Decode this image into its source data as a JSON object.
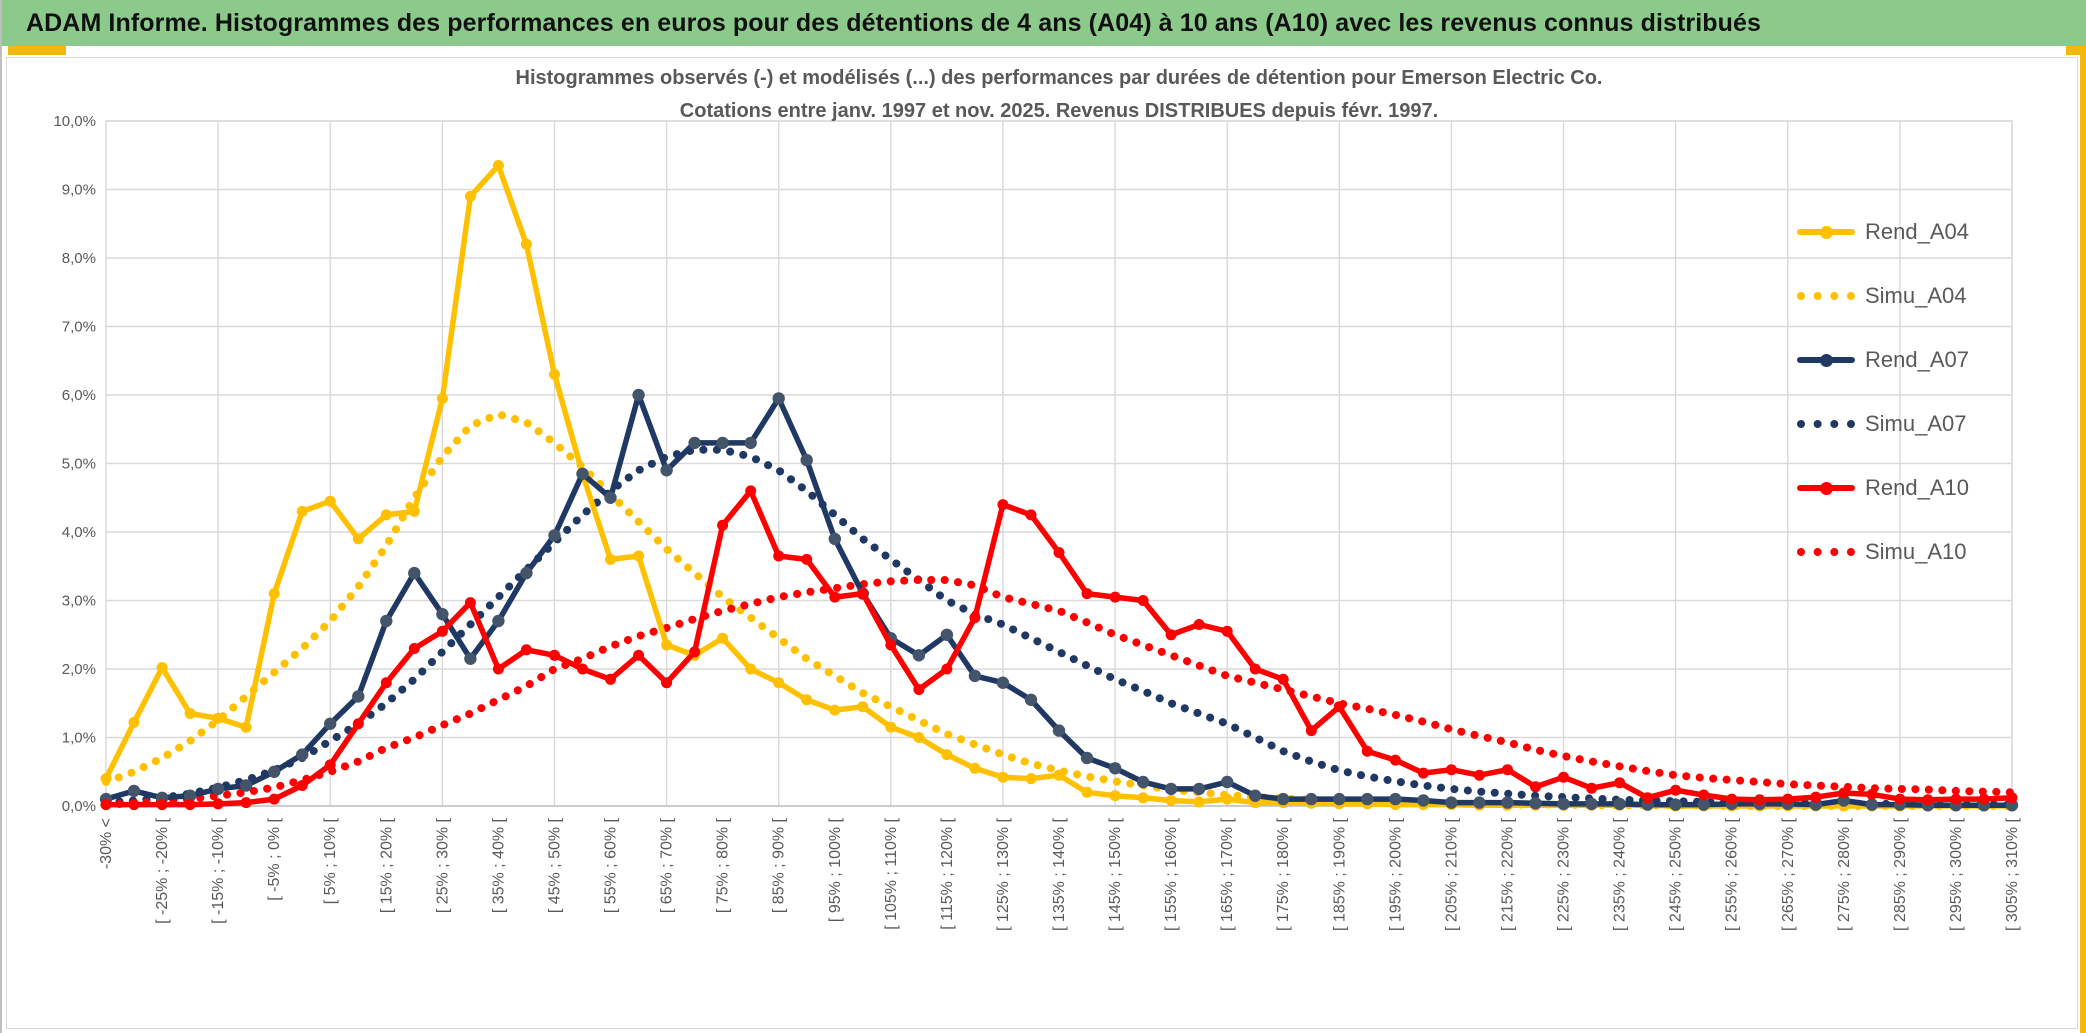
{
  "header": {
    "title": "ADAM Informe. Histogrammes des performances en euros pour des détentions de 4 ans (A04) à 10 ans (A10) avec les revenus connus distribués"
  },
  "page_colors": {
    "header_green": "#8cca8c",
    "accent_gold": "#f2b80c",
    "text_gray": "#595959",
    "gridline_gray": "#d9d9d9",
    "axis_gray": "#bfbfbf"
  },
  "chart_data": {
    "type": "line",
    "title_line1": "Histogrammes observés (-) et modélisés (...) des performances par durées de détention pour Emerson Electric Co.",
    "title_line2": "Cotations entre janv. 1997 et nov. 2025. Revenus DISTRIBUES depuis févr. 1997.",
    "ylim": [
      0,
      10
    ],
    "grid": true,
    "legend_position": "right",
    "n_bins": 69,
    "x_tick_every": 2,
    "y_tick_labels": [
      "10,0%",
      "9,0%",
      "8,0%",
      "7,0%",
      "6,0%",
      "5,0%",
      "4,0%",
      "3,0%",
      "2,0%",
      "1,0%",
      "0,0%"
    ],
    "x_tick_labels": [
      "-30% <",
      "[ -25% ; -20% [",
      "[ -15% ; -10% [",
      "[ -5% ; 0% [",
      "[ 5% ; 10% [",
      "[ 15% ; 20% [",
      "[ 25% ; 30% [",
      "[ 35% ; 40% [",
      "[ 45% ; 50% [",
      "[ 55% ; 60% [",
      "[ 65% ; 70% [",
      "[ 75% ; 80% [",
      "[ 85% ; 90% [",
      "[ 95% ; 100% [",
      "[ 105% ; 110% [",
      "[ 115% ; 120% [",
      "[ 125% ; 130% [",
      "[ 135% ; 140% [",
      "[ 145% ; 150% [",
      "[ 155% ; 160% [",
      "[ 165% ; 170% [",
      "[ 175% ; 180% [",
      "[ 185% ; 190% [",
      "[ 195% ; 200% [",
      "[ 205% ; 210% [",
      "[ 215% ; 220% [",
      "[ 225% ; 230% [",
      "[ 235% ; 240% [",
      "[ 245% ; 250% [",
      "[ 255% ; 260% [",
      "[ 265% ; 270% [",
      "[ 275% ; 280% [",
      "[ 285% ; 290% [",
      "[ 295% ; 300% [",
      "[ 305% ; 310% ["
    ],
    "series": [
      {
        "name": "Simu_A04",
        "color": "#ffc000",
        "style": "dotted",
        "markers": false,
        "values": [
          0.35,
          0.5,
          0.7,
          0.95,
          1.25,
          1.6,
          1.95,
          2.3,
          2.7,
          3.2,
          3.8,
          4.5,
          5.1,
          5.55,
          5.72,
          5.6,
          5.3,
          4.95,
          4.55,
          4.15,
          3.75,
          3.4,
          3.05,
          2.75,
          2.45,
          2.15,
          1.9,
          1.65,
          1.45,
          1.25,
          1.05,
          0.9,
          0.75,
          0.62,
          0.52,
          0.43,
          0.36,
          0.3,
          0.24,
          0.2,
          0.16,
          0.13,
          0.11,
          0.09,
          0.07,
          0.06,
          0.05,
          0.04,
          0.03,
          0.03,
          0.02,
          0.02,
          0.02,
          0.01,
          0.01,
          0.01,
          0.01,
          0.01,
          0,
          0,
          0,
          0,
          0,
          0,
          0,
          0,
          0,
          0,
          0
        ]
      },
      {
        "name": "Simu_A07",
        "color": "#1f3864",
        "style": "dotted",
        "markers": false,
        "values": [
          0.05,
          0.08,
          0.12,
          0.18,
          0.27,
          0.38,
          0.52,
          0.7,
          0.95,
          1.2,
          1.5,
          1.85,
          2.25,
          2.65,
          3.05,
          3.45,
          3.85,
          4.25,
          4.6,
          4.9,
          5.1,
          5.2,
          5.2,
          5.1,
          4.9,
          4.6,
          4.25,
          3.9,
          3.6,
          3.3,
          3.0,
          2.8,
          2.65,
          2.45,
          2.25,
          2.05,
          1.85,
          1.68,
          1.5,
          1.35,
          1.2,
          1.0,
          0.8,
          0.65,
          0.52,
          0.43,
          0.36,
          0.3,
          0.25,
          0.21,
          0.18,
          0.15,
          0.13,
          0.11,
          0.09,
          0.08,
          0.07,
          0.06,
          0.05,
          0.05,
          0.04,
          0.04,
          0.03,
          0.03,
          0.03,
          0.02,
          0.02,
          0.02,
          0.02
        ]
      },
      {
        "name": "Simu_A10",
        "color": "#ff0000",
        "style": "dotted",
        "markers": false,
        "values": [
          0.02,
          0.04,
          0.07,
          0.1,
          0.15,
          0.2,
          0.27,
          0.38,
          0.5,
          0.65,
          0.85,
          1.0,
          1.18,
          1.35,
          1.55,
          1.75,
          2.0,
          2.15,
          2.33,
          2.48,
          2.6,
          2.73,
          2.85,
          2.95,
          3.05,
          3.12,
          3.18,
          3.24,
          3.28,
          3.3,
          3.3,
          3.22,
          3.05,
          2.95,
          2.85,
          2.68,
          2.5,
          2.35,
          2.2,
          2.05,
          1.9,
          1.8,
          1.7,
          1.6,
          1.5,
          1.42,
          1.33,
          1.23,
          1.12,
          1.02,
          0.93,
          0.82,
          0.73,
          0.65,
          0.58,
          0.51,
          0.45,
          0.41,
          0.38,
          0.35,
          0.32,
          0.3,
          0.28,
          0.26,
          0.25,
          0.24,
          0.22,
          0.21,
          0.2
        ]
      },
      {
        "name": "Rend_A04",
        "color": "#ffc000",
        "style": "solid",
        "markers": true,
        "marker_color": "#ffc000",
        "values": [
          0.4,
          1.22,
          2.02,
          1.35,
          1.28,
          1.15,
          3.1,
          4.3,
          4.45,
          3.9,
          4.25,
          4.3,
          5.95,
          8.9,
          9.35,
          8.2,
          6.3,
          4.85,
          3.6,
          3.65,
          2.35,
          2.2,
          2.45,
          2.0,
          1.8,
          1.55,
          1.4,
          1.45,
          1.15,
          1.0,
          0.75,
          0.55,
          0.42,
          0.4,
          0.45,
          0.2,
          0.15,
          0.12,
          0.08,
          0.06,
          0.1,
          0.05,
          0.05,
          0.04,
          0.03,
          0.03,
          0.02,
          0.02,
          0.02,
          0.01,
          0.01,
          0.01,
          0.01,
          0.01,
          0.01,
          0.01,
          0,
          0,
          0,
          0,
          0,
          0,
          0,
          0,
          0,
          0,
          0,
          0,
          0
        ]
      },
      {
        "name": "Rend_A07",
        "color": "#1f3864",
        "style": "solid",
        "markers": true,
        "marker_color": "#44546a",
        "values": [
          0.1,
          0.22,
          0.12,
          0.15,
          0.25,
          0.3,
          0.5,
          0.75,
          1.2,
          1.6,
          2.7,
          3.4,
          2.8,
          2.15,
          2.7,
          3.4,
          3.95,
          4.85,
          4.5,
          6.0,
          4.9,
          5.3,
          5.3,
          5.3,
          5.95,
          5.05,
          3.9,
          3.1,
          2.45,
          2.2,
          2.5,
          1.9,
          1.8,
          1.55,
          1.1,
          0.7,
          0.55,
          0.35,
          0.25,
          0.25,
          0.35,
          0.15,
          0.1,
          0.1,
          0.1,
          0.1,
          0.1,
          0.08,
          0.05,
          0.05,
          0.05,
          0.04,
          0.03,
          0.03,
          0.03,
          0.02,
          0.02,
          0.02,
          0.03,
          0.03,
          0.03,
          0.02,
          0.08,
          0.02,
          0.02,
          0.01,
          0.01,
          0.01,
          0.01
        ]
      },
      {
        "name": "Rend_A10",
        "color": "#ff0000",
        "style": "solid",
        "markers": true,
        "marker_color": "#ff0000",
        "values": [
          0.02,
          0.02,
          0.02,
          0.02,
          0.03,
          0.05,
          0.1,
          0.3,
          0.6,
          1.2,
          1.8,
          2.3,
          2.55,
          2.97,
          2.0,
          2.28,
          2.2,
          2.0,
          1.85,
          2.2,
          1.8,
          2.25,
          4.1,
          4.6,
          3.65,
          3.6,
          3.05,
          3.1,
          2.35,
          1.7,
          2.0,
          2.75,
          4.4,
          4.25,
          3.7,
          3.1,
          3.05,
          3.0,
          2.5,
          2.65,
          2.55,
          2.0,
          1.85,
          1.1,
          1.45,
          0.8,
          0.67,
          0.48,
          0.53,
          0.45,
          0.53,
          0.28,
          0.42,
          0.26,
          0.34,
          0.12,
          0.23,
          0.16,
          0.1,
          0.09,
          0.1,
          0.13,
          0.19,
          0.17,
          0.1,
          0.09,
          0.1,
          0.1,
          0.12
        ]
      }
    ],
    "legend_order": [
      "Rend_A04",
      "Simu_A04",
      "Rend_A07",
      "Simu_A07",
      "Rend_A10",
      "Simu_A10"
    ]
  }
}
